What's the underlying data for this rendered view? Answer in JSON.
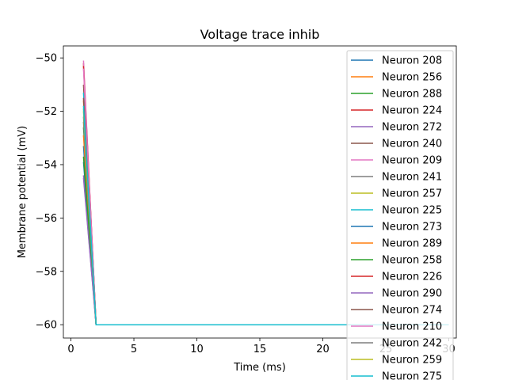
{
  "chart_data": {
    "type": "line",
    "title": "Voltage trace inhib",
    "xlabel": "Time (ms)",
    "ylabel": "Membrane potential (mV)",
    "xlim": [
      -0.6,
      30.6
    ],
    "ylim": [
      -60.5,
      -49.55
    ],
    "xticks": [
      0,
      5,
      10,
      15,
      20,
      25,
      30
    ],
    "yticks": [
      -60,
      -58,
      -56,
      -54,
      -52,
      -50
    ],
    "xtick_labels": [
      "0",
      "5",
      "10",
      "15",
      "20",
      "25",
      "30"
    ],
    "ytick_labels": [
      "−60",
      "−58",
      "−56",
      "−54",
      "−52",
      "−50"
    ],
    "legend_position": "right",
    "series": [
      {
        "name": "Neuron 208",
        "color": "#1f77b4",
        "x": [
          1,
          2,
          30
        ],
        "y": [
          -53.3,
          -60,
          -60
        ]
      },
      {
        "name": "Neuron 256",
        "color": "#ff7f0e",
        "x": [
          1,
          2,
          30
        ],
        "y": [
          -51.6,
          -60,
          -60
        ]
      },
      {
        "name": "Neuron 288",
        "color": "#2ca02c",
        "x": [
          1,
          2,
          30
        ],
        "y": [
          -52.6,
          -60,
          -60
        ]
      },
      {
        "name": "Neuron 224",
        "color": "#d62728",
        "x": [
          1,
          2,
          30
        ],
        "y": [
          -50.2,
          -60,
          -60
        ]
      },
      {
        "name": "Neuron 272",
        "color": "#9467bd",
        "x": [
          1,
          2,
          30
        ],
        "y": [
          -54.4,
          -60,
          -60
        ]
      },
      {
        "name": "Neuron 240",
        "color": "#8c564b",
        "x": [
          1,
          2,
          30
        ],
        "y": [
          -51.0,
          -60,
          -60
        ]
      },
      {
        "name": "Neuron 209",
        "color": "#e377c2",
        "x": [
          1,
          2,
          30
        ],
        "y": [
          -50.1,
          -60,
          -60
        ]
      },
      {
        "name": "Neuron 241",
        "color": "#7f7f7f",
        "x": [
          1,
          2,
          30
        ],
        "y": [
          -52.2,
          -60,
          -60
        ]
      },
      {
        "name": "Neuron 257",
        "color": "#bcbd22",
        "x": [
          1,
          2,
          30
        ],
        "y": [
          -51.9,
          -60,
          -60
        ]
      },
      {
        "name": "Neuron 225",
        "color": "#17becf",
        "x": [
          1,
          2,
          30
        ],
        "y": [
          -51.3,
          -60,
          -60
        ]
      },
      {
        "name": "Neuron 273",
        "color": "#1f77b4",
        "x": [
          1,
          2,
          30
        ],
        "y": [
          -53.9,
          -60,
          -60
        ]
      },
      {
        "name": "Neuron 289",
        "color": "#ff7f0e",
        "x": [
          1,
          2,
          30
        ],
        "y": [
          -52.9,
          -60,
          -60
        ]
      },
      {
        "name": "Neuron 258",
        "color": "#2ca02c",
        "x": [
          1,
          2,
          30
        ],
        "y": [
          -53.7,
          -60,
          -60
        ]
      },
      {
        "name": "Neuron 226",
        "color": "#d62728",
        "x": [
          1,
          2,
          30
        ],
        "y": [
          -50.3,
          -60,
          -60
        ]
      },
      {
        "name": "Neuron 290",
        "color": "#9467bd",
        "x": [
          1,
          2,
          30
        ],
        "y": [
          -54.5,
          -60,
          -60
        ]
      },
      {
        "name": "Neuron 274",
        "color": "#8c564b",
        "x": [
          1,
          2,
          30
        ],
        "y": [
          -51.5,
          -60,
          -60
        ]
      },
      {
        "name": "Neuron 210",
        "color": "#e377c2",
        "x": [
          1,
          2,
          30
        ],
        "y": [
          -50.4,
          -60,
          -60
        ]
      },
      {
        "name": "Neuron 242",
        "color": "#7f7f7f",
        "x": [
          1,
          2,
          30
        ],
        "y": [
          -52.4,
          -60,
          -60
        ]
      },
      {
        "name": "Neuron 259",
        "color": "#bcbd22",
        "x": [
          1,
          2,
          30
        ],
        "y": [
          -52.0,
          -60,
          -60
        ]
      },
      {
        "name": "Neuron 275",
        "color": "#17becf",
        "x": [
          1,
          2,
          30
        ],
        "y": [
          -51.8,
          -60,
          -60
        ]
      }
    ]
  }
}
